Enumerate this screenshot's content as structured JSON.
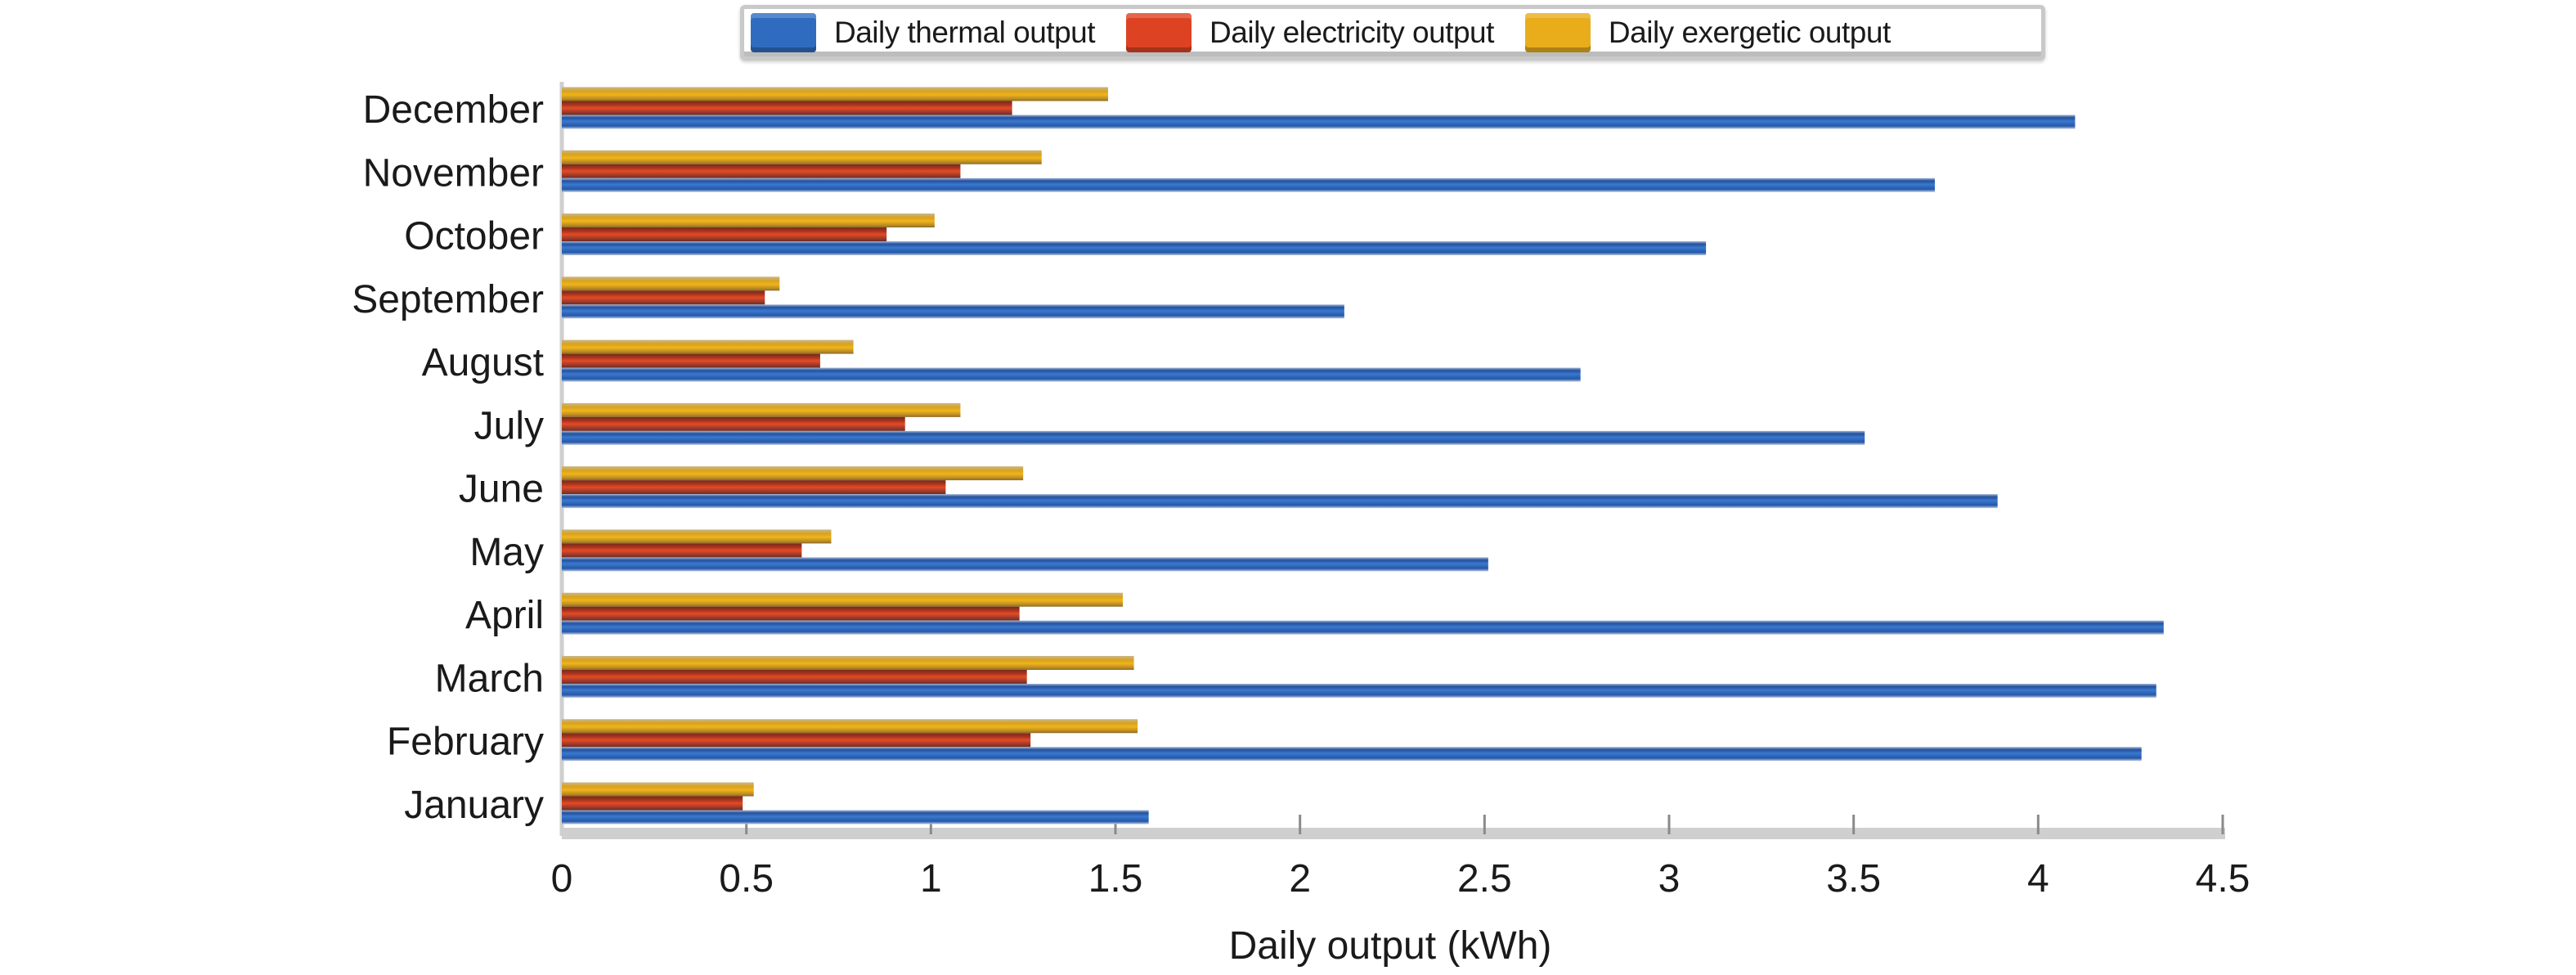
{
  "chart_data": {
    "type": "bar",
    "orientation": "horizontal",
    "title": "",
    "xlabel": "Daily output (kWh)",
    "ylabel": "",
    "xlim": [
      0,
      4.5
    ],
    "xticks": [
      "0",
      "0.5",
      "1",
      "1.5",
      "2",
      "2.5",
      "3",
      "3.5",
      "4",
      "4.5"
    ],
    "grid": false,
    "legend_position": "top-center",
    "categories": [
      "January",
      "February",
      "March",
      "April",
      "May",
      "June",
      "July",
      "August",
      "September",
      "October",
      "November",
      "December"
    ],
    "series": [
      {
        "name": "Daily thermal output",
        "color": "#2f6cc0",
        "values": [
          1.59,
          4.28,
          4.32,
          4.34,
          2.51,
          3.89,
          3.53,
          2.76,
          2.12,
          3.1,
          3.72,
          4.1
        ]
      },
      {
        "name": "Daily electricity output",
        "color": "#dd4322",
        "values": [
          0.49,
          1.27,
          1.26,
          1.24,
          0.65,
          1.04,
          0.93,
          0.7,
          0.55,
          0.88,
          1.08,
          1.22
        ]
      },
      {
        "name": "Daily exergetic output",
        "color": "#e9ad1c",
        "values": [
          0.52,
          1.56,
          1.55,
          1.52,
          0.73,
          1.25,
          1.08,
          0.79,
          0.59,
          1.01,
          1.3,
          1.48
        ]
      }
    ]
  }
}
